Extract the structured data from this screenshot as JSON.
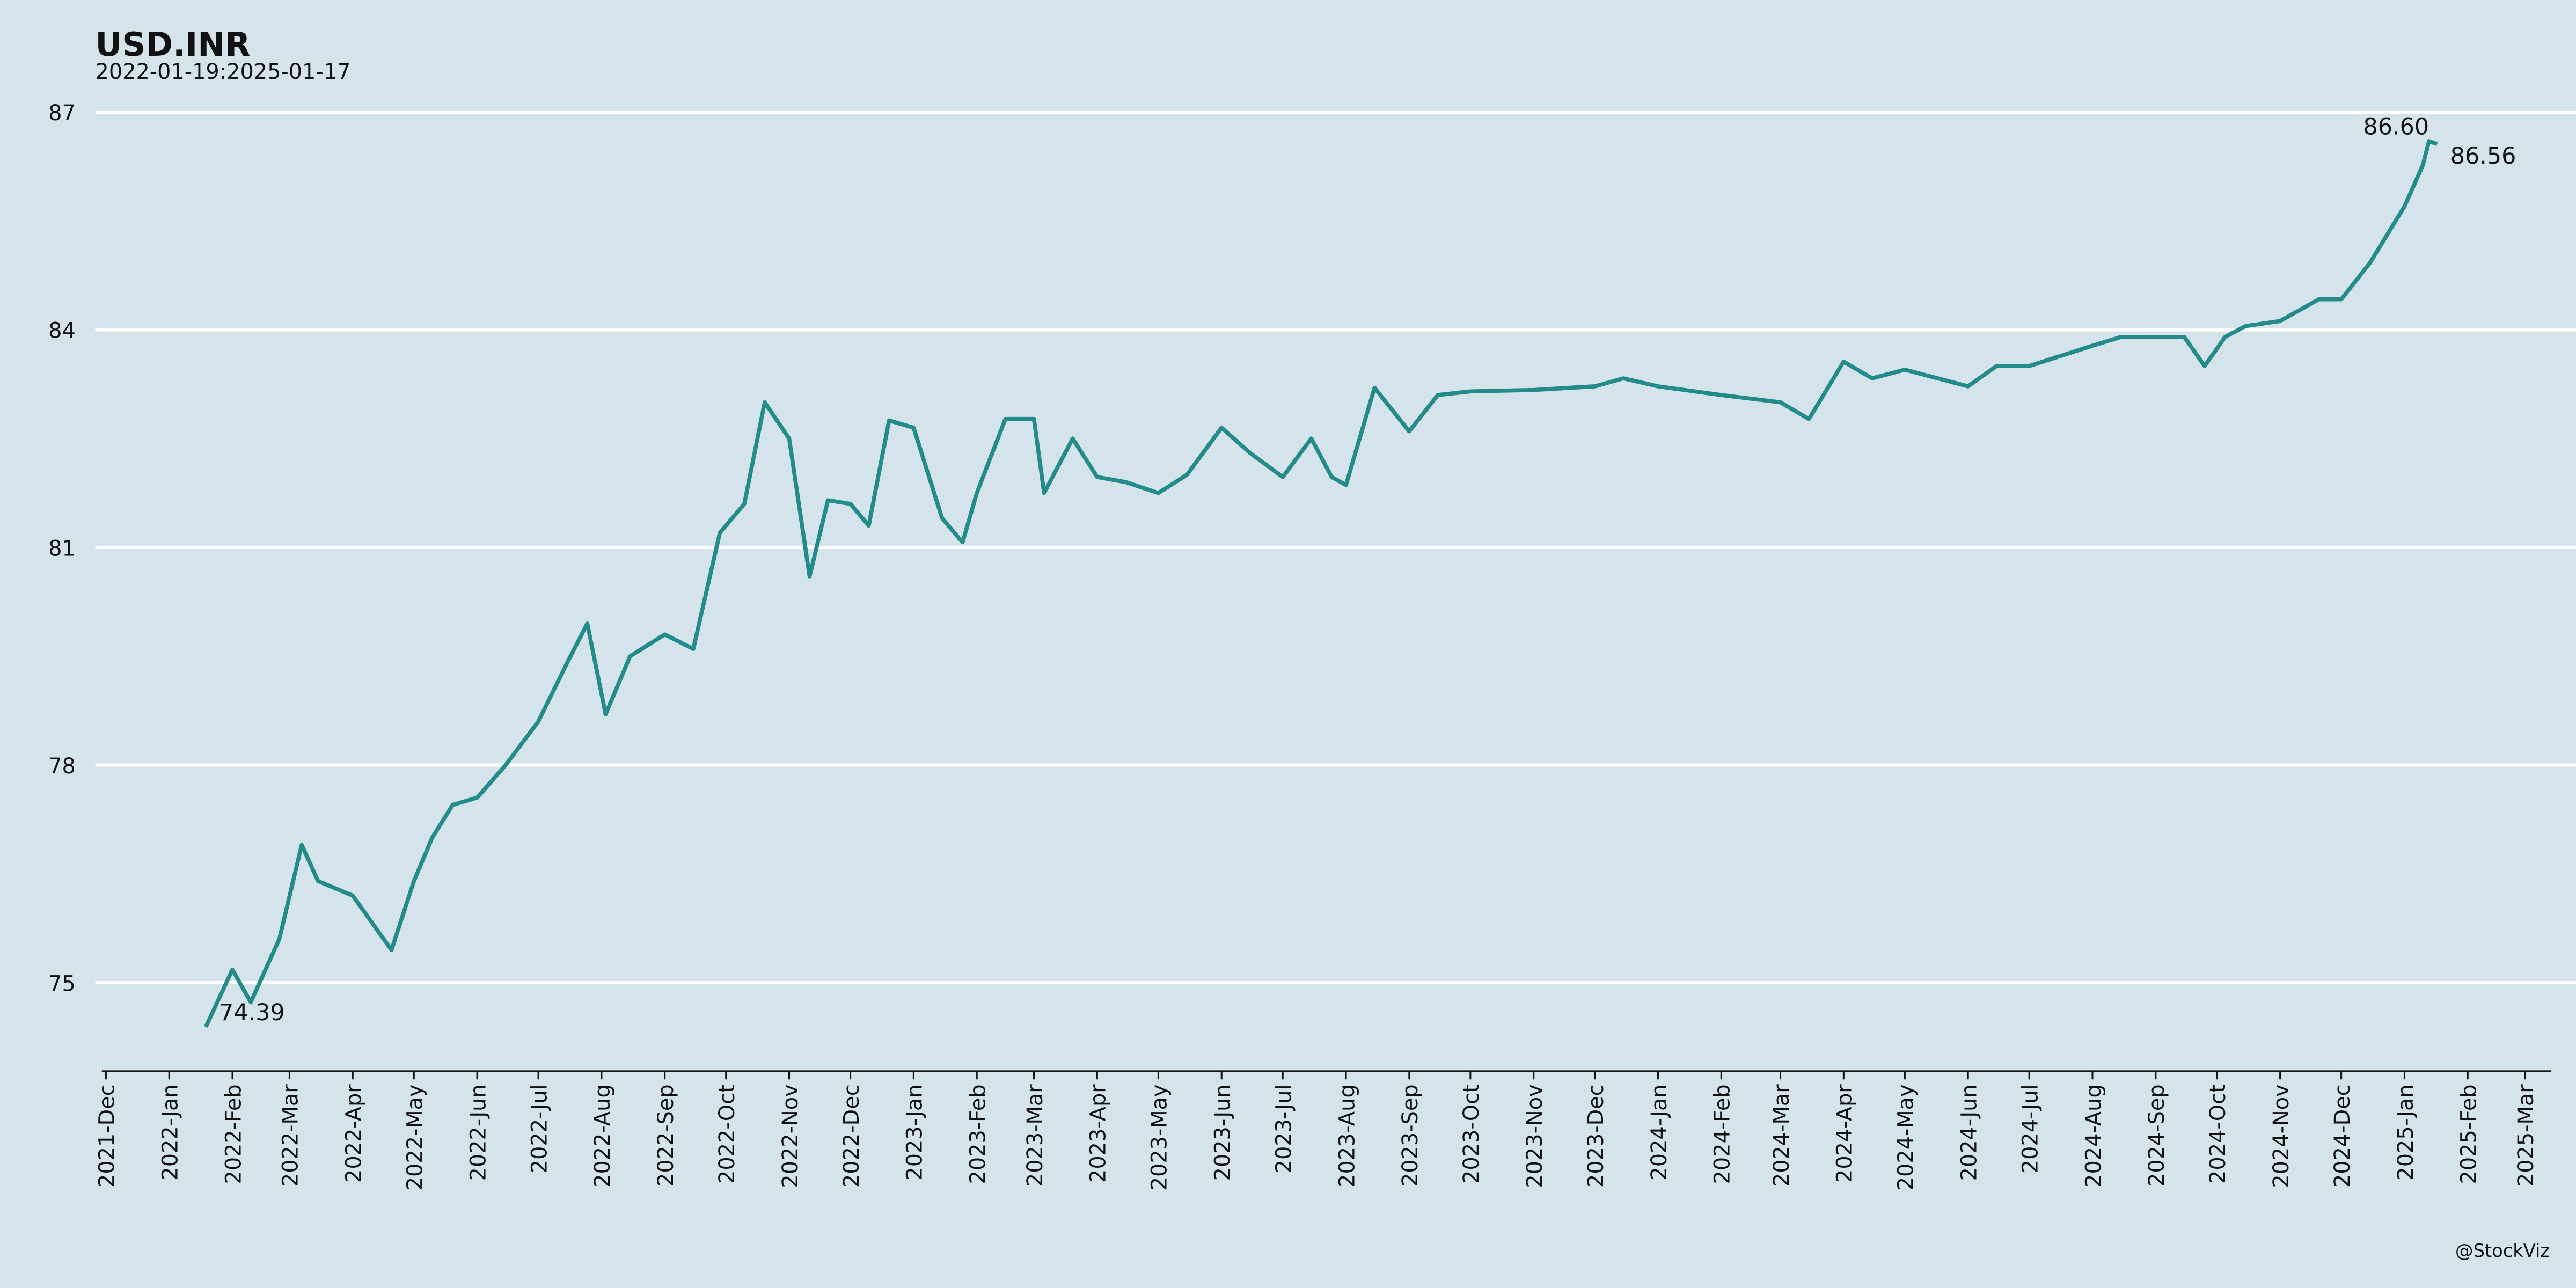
{
  "chart_data": {
    "type": "line",
    "title": "USD.INR",
    "subtitle": "2022-01-19:2025-01-17",
    "caption": "@StockViz",
    "background": "#d5e4eb",
    "grid": true,
    "series": [
      {
        "name": "USD.INR",
        "color": "#238b8a",
        "x": [
          "2022-01-19",
          "2022-02-01",
          "2022-02-10",
          "2022-02-24",
          "2022-03-07",
          "2022-03-15",
          "2022-04-01",
          "2022-04-20",
          "2022-05-01",
          "2022-05-10",
          "2022-05-20",
          "2022-06-01",
          "2022-06-15",
          "2022-07-01",
          "2022-07-15",
          "2022-07-25",
          "2022-08-03",
          "2022-08-15",
          "2022-09-01",
          "2022-09-15",
          "2022-09-28",
          "2022-10-10",
          "2022-10-20",
          "2022-11-01",
          "2022-11-11",
          "2022-11-20",
          "2022-12-01",
          "2022-12-10",
          "2022-12-20",
          "2023-01-01",
          "2023-01-15",
          "2023-01-25",
          "2023-02-01",
          "2023-02-15",
          "2023-03-01",
          "2023-03-06",
          "2023-03-20",
          "2023-04-01",
          "2023-04-15",
          "2023-05-01",
          "2023-05-15",
          "2023-06-01",
          "2023-06-15",
          "2023-07-01",
          "2023-07-15",
          "2023-07-25",
          "2023-08-01",
          "2023-08-15",
          "2023-09-01",
          "2023-09-15",
          "2023-10-01",
          "2023-11-01",
          "2023-12-01",
          "2023-12-15",
          "2024-01-01",
          "2024-02-01",
          "2024-03-01",
          "2024-03-15",
          "2024-04-01",
          "2024-04-15",
          "2024-05-01",
          "2024-06-01",
          "2024-06-15",
          "2024-07-01",
          "2024-08-01",
          "2024-08-15",
          "2024-09-01",
          "2024-09-15",
          "2024-09-25",
          "2024-10-05",
          "2024-10-15",
          "2024-11-01",
          "2024-11-20",
          "2024-12-01",
          "2024-12-15",
          "2025-01-01",
          "2025-01-10",
          "2025-01-13",
          "2025-01-17"
        ],
        "values": [
          74.39,
          75.18,
          74.73,
          75.6,
          76.9,
          76.4,
          76.2,
          75.45,
          76.4,
          77.0,
          77.45,
          77.55,
          78.0,
          78.6,
          79.4,
          79.95,
          78.7,
          79.5,
          79.8,
          79.6,
          81.2,
          81.6,
          83.0,
          82.5,
          80.6,
          81.65,
          81.6,
          81.3,
          82.75,
          82.65,
          81.4,
          81.07,
          81.75,
          82.77,
          82.77,
          81.75,
          82.5,
          81.97,
          81.9,
          81.75,
          82.0,
          82.65,
          82.3,
          81.97,
          82.5,
          81.97,
          81.86,
          83.2,
          82.6,
          83.1,
          83.15,
          83.17,
          83.22,
          83.33,
          83.22,
          83.1,
          83.0,
          82.77,
          83.56,
          83.33,
          83.45,
          83.22,
          83.5,
          83.5,
          83.78,
          83.9,
          83.9,
          83.9,
          83.5,
          83.9,
          84.05,
          84.12,
          84.42,
          84.42,
          84.92,
          85.7,
          86.27,
          86.6,
          86.56
        ]
      }
    ],
    "annotations": [
      {
        "x": "2025-01-13",
        "value": 86.6,
        "label": "86.60"
      },
      {
        "x": "2025-01-17",
        "value": 86.56,
        "label": "86.56"
      },
      {
        "x": "2022-01-19",
        "value": 74.39,
        "label": "74.39"
      }
    ],
    "xlim": [
      "2021-11-29",
      "2025-03-14"
    ],
    "xticks": [
      {
        "value": "2021-12-01",
        "label": "2021-Dec"
      },
      {
        "value": "2022-01-01",
        "label": "2022-Jan"
      },
      {
        "value": "2022-02-01",
        "label": "2022-Feb"
      },
      {
        "value": "2022-03-01",
        "label": "2022-Mar"
      },
      {
        "value": "2022-04-01",
        "label": "2022-Apr"
      },
      {
        "value": "2022-05-01",
        "label": "2022-May"
      },
      {
        "value": "2022-06-01",
        "label": "2022-Jun"
      },
      {
        "value": "2022-07-01",
        "label": "2022-Jul"
      },
      {
        "value": "2022-08-01",
        "label": "2022-Aug"
      },
      {
        "value": "2022-09-01",
        "label": "2022-Sep"
      },
      {
        "value": "2022-10-01",
        "label": "2022-Oct"
      },
      {
        "value": "2022-11-01",
        "label": "2022-Nov"
      },
      {
        "value": "2022-12-01",
        "label": "2022-Dec"
      },
      {
        "value": "2023-01-01",
        "label": "2023-Jan"
      },
      {
        "value": "2023-02-01",
        "label": "2023-Feb"
      },
      {
        "value": "2023-03-01",
        "label": "2023-Mar"
      },
      {
        "value": "2023-04-01",
        "label": "2023-Apr"
      },
      {
        "value": "2023-05-01",
        "label": "2023-May"
      },
      {
        "value": "2023-06-01",
        "label": "2023-Jun"
      },
      {
        "value": "2023-07-01",
        "label": "2023-Jul"
      },
      {
        "value": "2023-08-01",
        "label": "2023-Aug"
      },
      {
        "value": "2023-09-01",
        "label": "2023-Sep"
      },
      {
        "value": "2023-10-01",
        "label": "2023-Oct"
      },
      {
        "value": "2023-11-01",
        "label": "2023-Nov"
      },
      {
        "value": "2023-12-01",
        "label": "2023-Dec"
      },
      {
        "value": "2024-01-01",
        "label": "2024-Jan"
      },
      {
        "value": "2024-02-01",
        "label": "2024-Feb"
      },
      {
        "value": "2024-03-01",
        "label": "2024-Mar"
      },
      {
        "value": "2024-04-01",
        "label": "2024-Apr"
      },
      {
        "value": "2024-05-01",
        "label": "2024-May"
      },
      {
        "value": "2024-06-01",
        "label": "2024-Jun"
      },
      {
        "value": "2024-07-01",
        "label": "2024-Jul"
      },
      {
        "value": "2024-08-01",
        "label": "2024-Aug"
      },
      {
        "value": "2024-09-01",
        "label": "2024-Sep"
      },
      {
        "value": "2024-10-01",
        "label": "2024-Oct"
      },
      {
        "value": "2024-11-01",
        "label": "2024-Nov"
      },
      {
        "value": "2024-12-01",
        "label": "2024-Dec"
      },
      {
        "value": "2025-01-01",
        "label": "2025-Jan"
      },
      {
        "value": "2025-02-01",
        "label": "2025-Feb"
      },
      {
        "value": "2025-03-01",
        "label": "2025-Mar"
      }
    ],
    "ylim": [
      73.78,
      87.3
    ],
    "yticks": [
      75,
      78,
      81,
      84,
      87
    ]
  }
}
